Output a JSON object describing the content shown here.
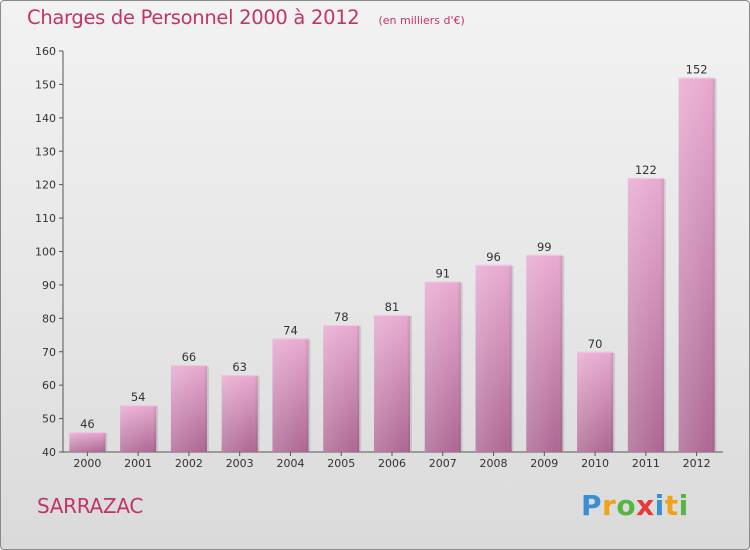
{
  "header": {
    "title": "Charges de Personnel 2000 à 2012",
    "subtitle": "(en milliers d'€)"
  },
  "footer": {
    "commune": "SARRAZAC",
    "logo_text": "Proxiti"
  },
  "colors": {
    "accent": "#c2336a",
    "bar_top": "#e6a6cd",
    "bar_bottom": "#b06a95"
  },
  "chart_data": {
    "type": "bar",
    "title": "Charges de Personnel 2000 à 2012",
    "subtitle": "(en milliers d'€)",
    "xlabel": "",
    "ylabel": "",
    "categories": [
      "2000",
      "2001",
      "2002",
      "2003",
      "2004",
      "2005",
      "2006",
      "2007",
      "2008",
      "2009",
      "2010",
      "2011",
      "2012"
    ],
    "values": [
      46,
      54,
      66,
      63,
      74,
      78,
      81,
      91,
      96,
      99,
      70,
      122,
      152
    ],
    "ylim": [
      40,
      160
    ],
    "yticks": [
      40,
      50,
      60,
      70,
      80,
      90,
      100,
      110,
      120,
      130,
      140,
      150,
      160
    ],
    "grid": false,
    "data_labels": true,
    "legend": "none"
  }
}
